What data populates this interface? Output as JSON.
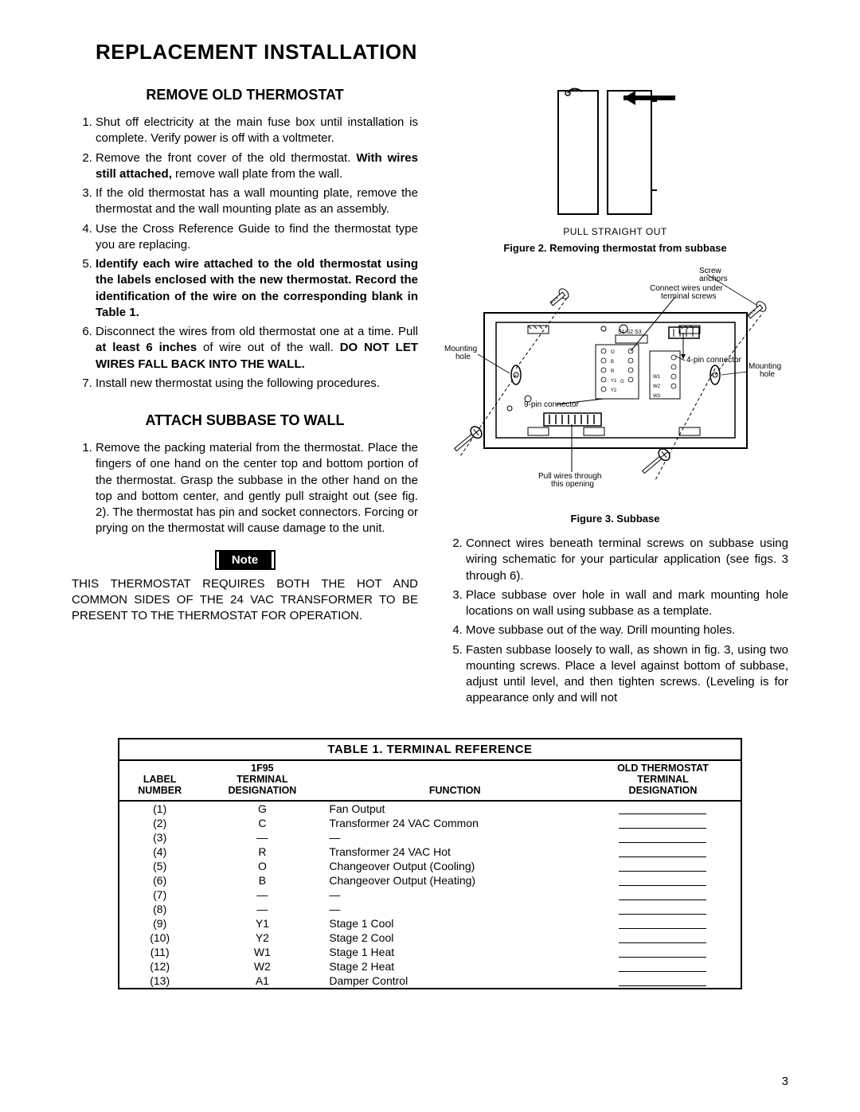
{
  "pageNumber": "3",
  "h1": "REPLACEMENT INSTALLATION",
  "section1": {
    "heading": "REMOVE OLD THERMOSTAT",
    "items": [
      {
        "pre": "Shut off electricity at the main fuse box until installation is complete. Verify power is off with a voltmeter."
      },
      {
        "pre": "Remove the front cover of the old thermostat. ",
        "bold": "With wires still attached,",
        "post": " remove wall plate from the wall."
      },
      {
        "pre": "If the old thermostat has a wall mounting plate, remove the thermostat and the wall mounting plate as an assembly."
      },
      {
        "pre": "Use the Cross Reference Guide to find the thermostat type you are replacing."
      },
      {
        "bold": "Identify each wire attached to the old thermostat using the labels enclosed with the new thermostat. Record the identification of the wire on the corresponding blank in Table 1."
      },
      {
        "pre": "Disconnect the wires from old thermostat one at a time. Pull ",
        "bold": "at least 6 inches",
        "post": " of wire out of the wall. ",
        "bold2": "DO NOT LET WIRES FALL BACK INTO THE WALL."
      },
      {
        "pre": "Install new thermostat using the following procedures."
      }
    ]
  },
  "section2": {
    "heading": "ATTACH SUBBASE TO WALL",
    "item1": "Remove the packing material from the thermostat. Place the fingers of one hand on the center top and bottom portion of the thermostat. Grasp the subbase in the other hand on the top and bottom center, and gently pull straight out (see fig. 2). The thermostat has pin and socket connectors. Forcing or prying on the thermostat will cause damage to the unit."
  },
  "noteLabel": "Note",
  "noteText": "THIS THERMOSTAT REQUIRES BOTH THE HOT AND COMMON SIDES OF THE 24 VAC TRANSFORMER TO BE PRESENT TO THE THERMOSTAT FOR OPERATION.",
  "fig2": {
    "label": "PULL STRAIGHT OUT",
    "caption": "Figure 2. Removing thermostat from subbase"
  },
  "fig3": {
    "caption": "Figure 3. Subbase",
    "labels": {
      "screwAnchors": "Screw\nanchors",
      "connectWires": "Connect wires under\nterminal screws",
      "mountingHoleL": "Mounting\nhole",
      "mountingHoleR": "Mounting\nhole",
      "fourPin": "4-pin connector",
      "ninePin": "9-pin connector",
      "pullWires": "Pull wires through\nthis opening",
      "s1s2s3": "S1 S2 S3",
      "termO": "O",
      "termB": "B",
      "termR": "R",
      "termY1": "Y1",
      "termY2": "Y2",
      "termG": "G",
      "termW1": "W1",
      "termW2": "W2",
      "termW3": "W3"
    }
  },
  "rightList": {
    "items": [
      "Connect wires beneath terminal screws on subbase using wiring schematic for your particular application (see figs. 3 through 6).",
      "Place subbase over hole in wall and mark mounting hole locations on wall using subbase as a template.",
      "Move subbase out of the way. Drill mounting holes.",
      "Fasten subbase loosely to wall, as shown in fig. 3, using two mounting screws. Place a level against bottom of subbase, adjust until level, and then tighten screws. (Leveling is for appearance only and will not"
    ]
  },
  "table": {
    "title": "TABLE 1. TERMINAL REFERENCE",
    "headers": {
      "label": "Label\nNumber",
      "term": "1F95\nTerminal\nDesignation",
      "func": "Function",
      "old": "Old Thermostat\nTerminal\nDesignation"
    },
    "rows": [
      {
        "n": "(1)",
        "t": "G",
        "f": "Fan Output"
      },
      {
        "n": "(2)",
        "t": "C",
        "f": "Transformer 24 VAC Common"
      },
      {
        "n": "(3)",
        "t": "—",
        "f": "—"
      },
      {
        "n": "(4)",
        "t": "R",
        "f": "Transformer 24 VAC Hot"
      },
      {
        "n": "(5)",
        "t": "O",
        "f": "Changeover Output (Cooling)"
      },
      {
        "n": "(6)",
        "t": "B",
        "f": "Changeover Output (Heating)"
      },
      {
        "n": "(7)",
        "t": "—",
        "f": "—"
      },
      {
        "n": "(8)",
        "t": "—",
        "f": "—"
      },
      {
        "n": "(9)",
        "t": "Y1",
        "f": "Stage 1 Cool"
      },
      {
        "n": "(10)",
        "t": "Y2",
        "f": "Stage 2 Cool"
      },
      {
        "n": "(11)",
        "t": "W1",
        "f": "Stage 1 Heat"
      },
      {
        "n": "(12)",
        "t": "W2",
        "f": "Stage 2 Heat"
      },
      {
        "n": "(13)",
        "t": "A1",
        "f": "Damper Control"
      }
    ]
  }
}
